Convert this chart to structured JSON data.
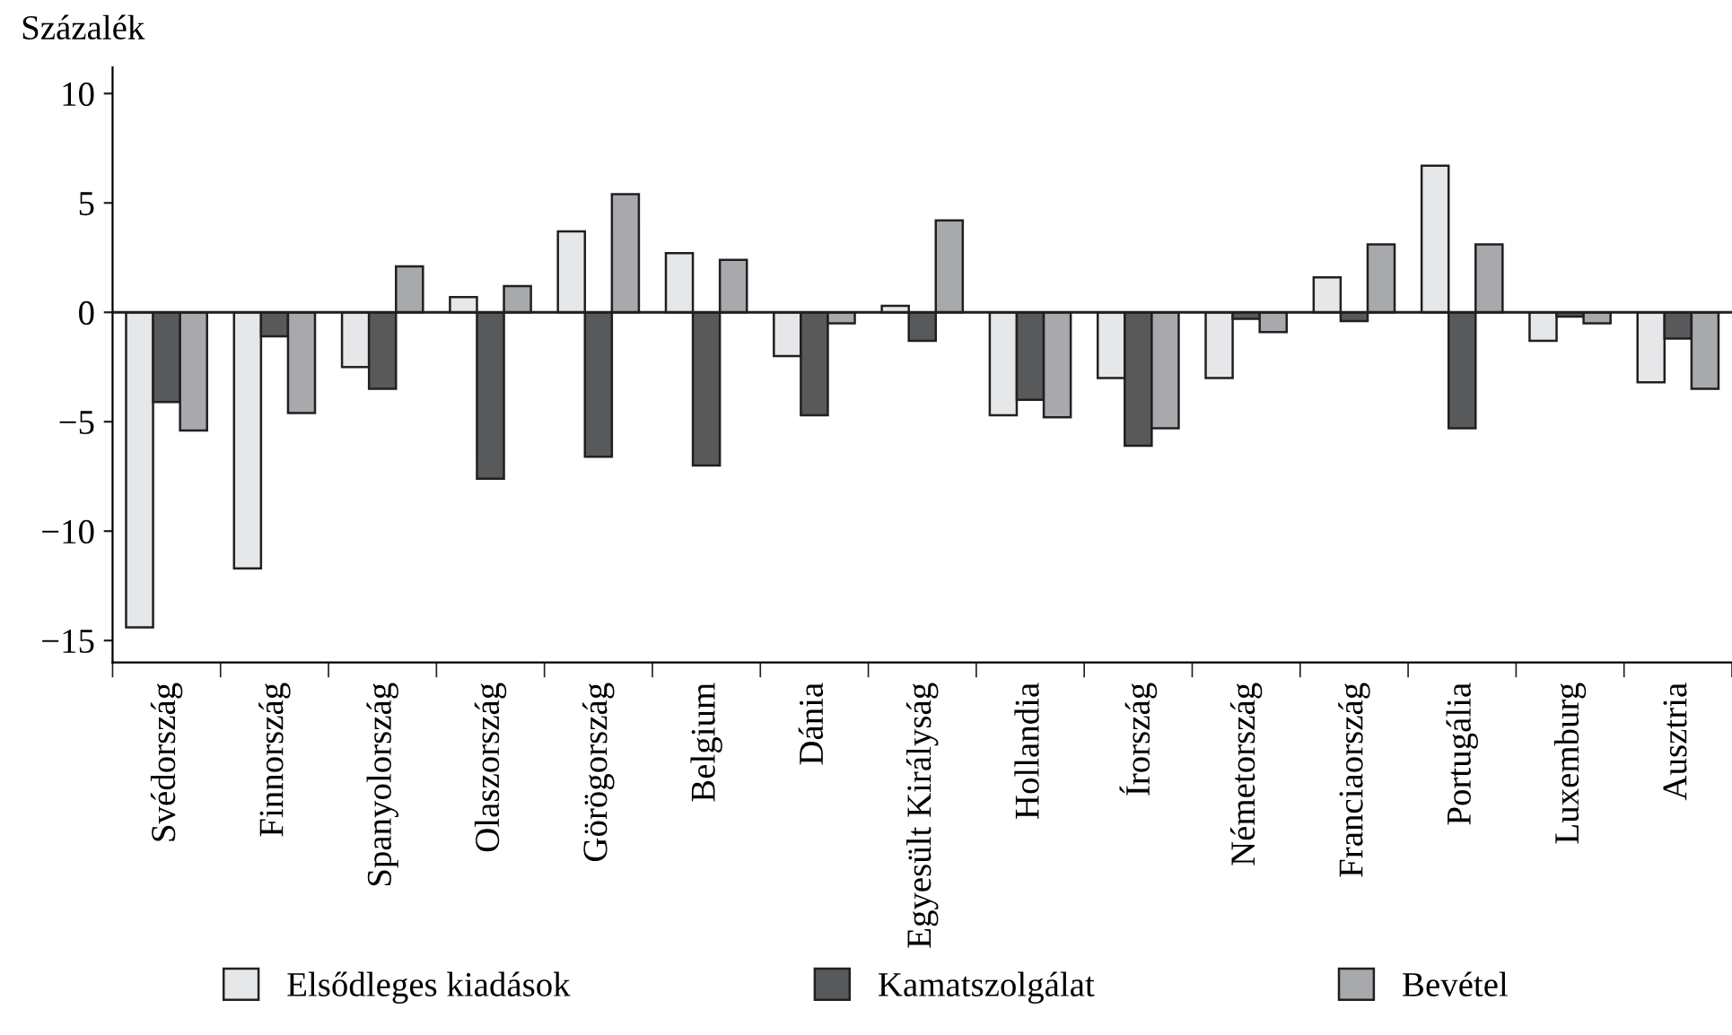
{
  "chart_data": {
    "type": "bar",
    "ylabel": "Százalék",
    "categories": [
      "Svédország",
      "Finnország",
      "Spanyolország",
      "Olaszország",
      "Görögország",
      "Belgium",
      "Dánia",
      "Egyesült Királyság",
      "Hollandia",
      "Írország",
      "Németország",
      "Franciaország",
      "Portugália",
      "Luxemburg",
      "Ausztria"
    ],
    "series": [
      {
        "name": "Elsődleges kiadások",
        "color": "#e6e7e8",
        "values": [
          -14.4,
          -11.7,
          -2.5,
          0.7,
          3.7,
          2.7,
          -2.0,
          0.3,
          -4.7,
          -3.0,
          -3.0,
          1.6,
          6.7,
          -1.3,
          -3.2
        ]
      },
      {
        "name": "Kamatszolgálat",
        "color": "#58595b",
        "values": [
          -4.1,
          -1.1,
          -3.5,
          -7.6,
          -6.6,
          -7.0,
          -4.7,
          -1.3,
          -4.0,
          -6.1,
          -0.3,
          -0.4,
          -5.3,
          -0.2,
          -1.2
        ]
      },
      {
        "name": "Bevétel",
        "color": "#a7a9ac",
        "values": [
          -5.4,
          -4.6,
          2.1,
          1.2,
          5.4,
          2.4,
          -0.5,
          4.2,
          -4.8,
          -5.3,
          -0.9,
          3.1,
          3.1,
          -0.5,
          -3.5
        ]
      }
    ],
    "ylim": [
      -16,
      11.2
    ],
    "yticks": [
      -15,
      -10,
      -5,
      0,
      5,
      10
    ],
    "ref_lines": [
      {
        "axis": "y",
        "value": 0,
        "color": "#231f20"
      }
    ],
    "grid": false,
    "legend": "bottom"
  }
}
